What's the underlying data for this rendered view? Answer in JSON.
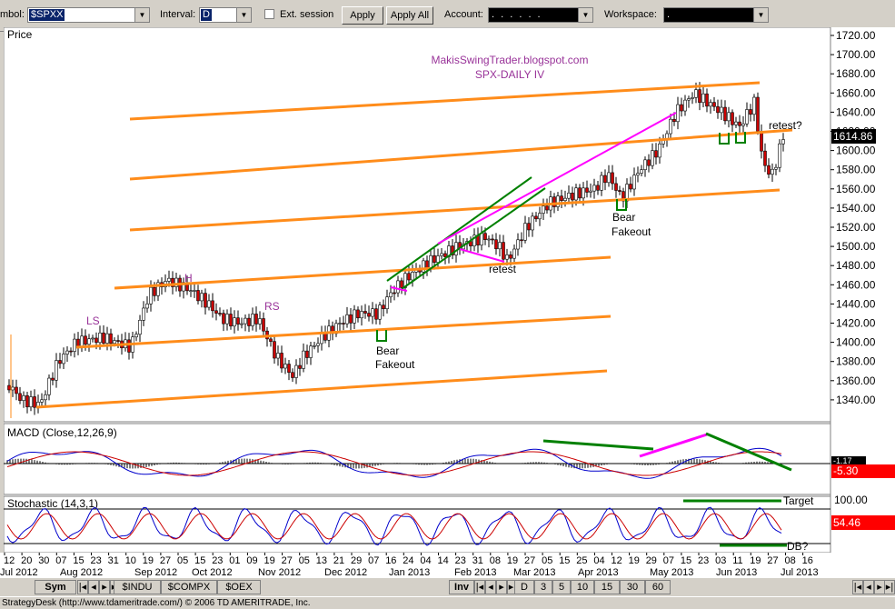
{
  "toolbar": {
    "symbol_label": "mbol:",
    "symbol_value": "$SPXX",
    "interval_label": "Interval:",
    "interval_value": "D",
    "ext_session_label": "Ext. session",
    "apply_label": "Apply",
    "apply_all_label": "Apply All",
    "account_label": "Account:",
    "account_value": ". . . . . .",
    "workspace_label": "Workspace:",
    "workspace_value": "."
  },
  "price_panel": {
    "title": "Price",
    "blog_text": "MakisSwingTrader.blogspot.com",
    "subtitle": "SPX-DAILY  IV",
    "last_price": "1614.86",
    "y_ticks": [
      "1720.00",
      "1700.00",
      "1680.00",
      "1660.00",
      "1640.00",
      "1620.00",
      "1600.00",
      "1580.00",
      "1560.00",
      "1540.00",
      "1520.00",
      "1500.00",
      "1480.00",
      "1460.00",
      "1440.00",
      "1420.00",
      "1400.00",
      "1380.00",
      "1360.00",
      "1340.00"
    ],
    "annotations": {
      "ls": "LS",
      "h": "H",
      "rs": "RS",
      "bear1": "Bear",
      "fakeout1": "Fakeout",
      "retest1": "retest",
      "bear2": "Bear",
      "fakeout2": "Fakeout",
      "retest2": "retest?"
    }
  },
  "macd_panel": {
    "title": "MACD (Close,12,26,9)",
    "value": "-5.30",
    "value_above": "-1.17"
  },
  "stoch_panel": {
    "title": "Stochastic (14,3,1)",
    "level_high": "100.00",
    "value": "54.46",
    "target_label": "Target",
    "db_label": "DB?"
  },
  "x_axis": {
    "days": [
      "12",
      "20",
      "30",
      "07",
      "15",
      "23",
      "31",
      "10",
      "19",
      "27",
      "05",
      "15",
      "23",
      "01",
      "09",
      "19",
      "27",
      "05",
      "13",
      "21",
      "29",
      "07",
      "16",
      "24",
      "04",
      "14",
      "23",
      "31",
      "08",
      "19",
      "27",
      "05",
      "15",
      "25",
      "04",
      "12",
      "19",
      "29",
      "07",
      "15",
      "23",
      "03",
      "11",
      "19",
      "27",
      "08",
      "16"
    ],
    "months": [
      "Jul 2012",
      "Aug 2012",
      "Sep 2012",
      "Oct 2012",
      "Nov 2012",
      "Dec 2012",
      "Jan 2013",
      "Feb 2013",
      "Mar 2013",
      "Apr 2013",
      "May 2013",
      "Jun 2013",
      "Jul 2013"
    ]
  },
  "tabs": {
    "sym": "Sym",
    "items": [
      "$INDU",
      "$COMPX",
      "$OEX"
    ],
    "inv": "Inv",
    "intervals": [
      "D",
      "3",
      "5",
      "10",
      "15",
      "30",
      "60"
    ]
  },
  "status_text": "StrategyDesk (http://www.tdameritrade.com/) © 2006 TD AMERITRADE, Inc.",
  "colors": {
    "channel": "#ff8c1a",
    "magenta": "#ff00ff",
    "green": "#008000",
    "bull": "#ffffff",
    "bear": "#cc0000",
    "annotation": "#993399",
    "macd_value_bg": "#ff0000",
    "stoch_value_bg": "#ff0000"
  },
  "icons": [
    "chevron-down-icon",
    "checkbox-icon",
    "nav-first-icon",
    "nav-prev-icon",
    "nav-next-icon",
    "nav-last-icon"
  ]
}
